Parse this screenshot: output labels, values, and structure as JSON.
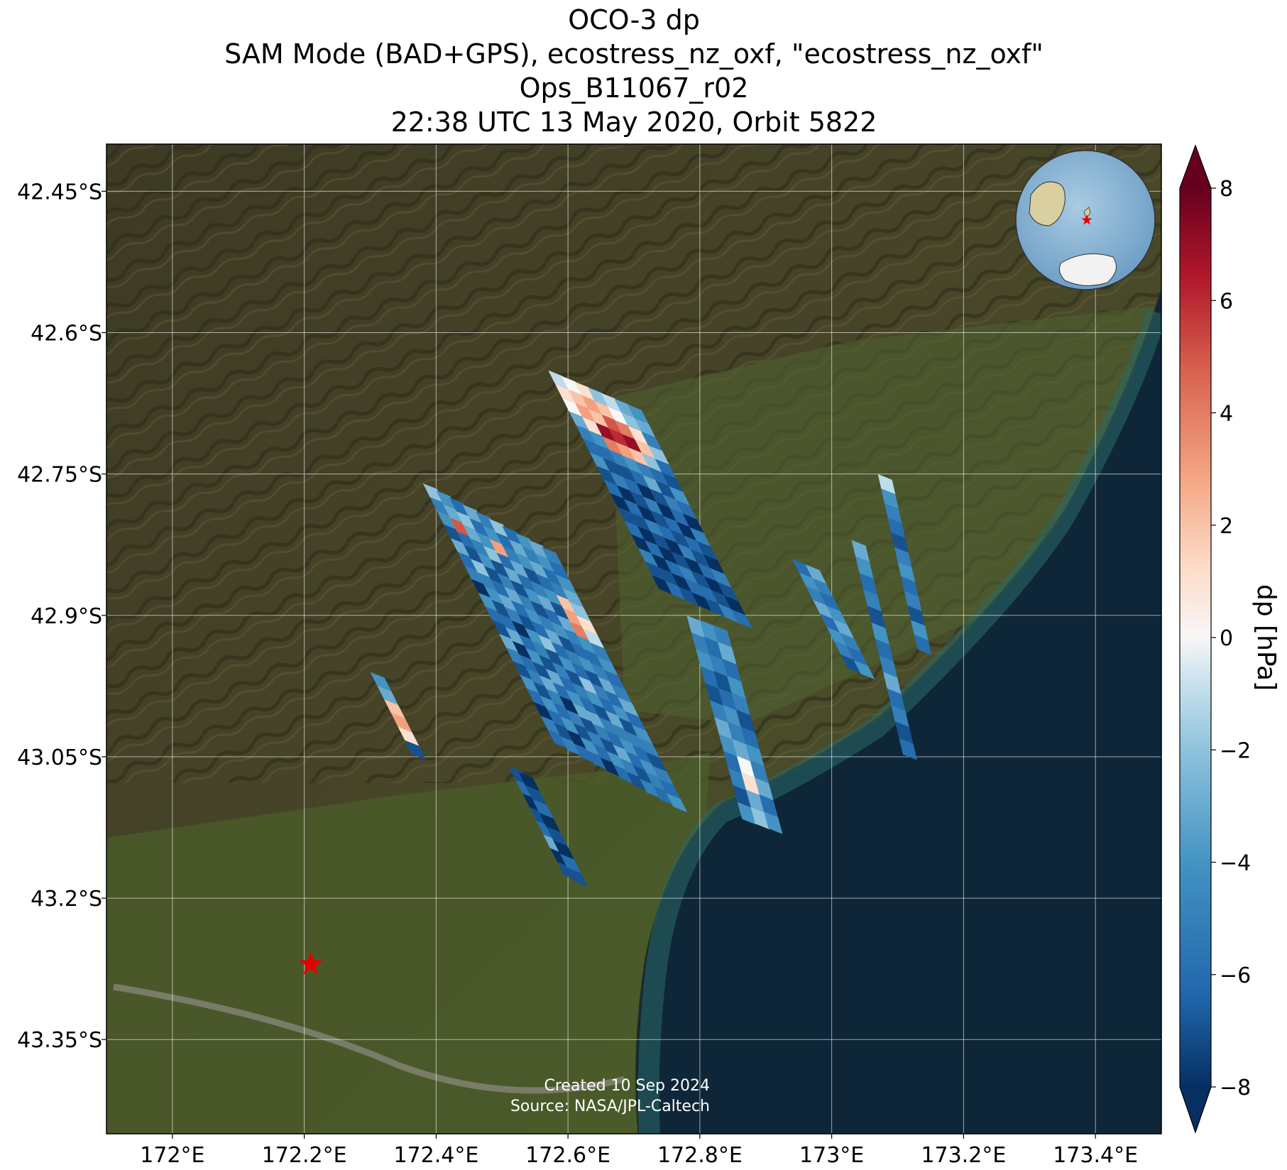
{
  "title": {
    "line1": "OCO-3 dp",
    "line2": "SAM Mode (BAD+GPS), ecostress_nz_oxf, \"ecostress_nz_oxf\"",
    "line3": "Ops_B11067_r02",
    "line4": "22:38 UTC 13 May 2020, Orbit 5822"
  },
  "axes": {
    "x_ticks": [
      "172°E",
      "172.2°E",
      "172.4°E",
      "172.6°E",
      "172.8°E",
      "173°E",
      "173.2°E",
      "173.4°E"
    ],
    "y_ticks": [
      "42.45°S",
      "42.6°S",
      "42.75°S",
      "42.9°S",
      "43.05°S",
      "43.2°S",
      "43.35°S"
    ],
    "lon_range": [
      171.9,
      173.5
    ],
    "lat_range": [
      -43.45,
      -42.4
    ]
  },
  "colorbar": {
    "label": "dp [hPa]",
    "ticks": [
      "8",
      "6",
      "4",
      "2",
      "0",
      "−2",
      "−4",
      "−6",
      "−8"
    ],
    "range": [
      -8,
      8
    ],
    "colormap": "RdBu_r",
    "extend": "both"
  },
  "credit": {
    "created": "Created 10 Sep 2024",
    "source": "Source: NASA/JPL-Caltech"
  },
  "target_marker": {
    "symbol": "star",
    "color": "#e60000",
    "lon": 172.21,
    "lat": -43.27
  },
  "inset": {
    "type": "globe",
    "marker_color": "#e60000"
  },
  "colors": {
    "land_dark": "#3b3a22",
    "land_green": "#4a5a2a",
    "ocean": "#0d2436",
    "ocean_coastal": "#1f5a5a",
    "grid": "#ffffff"
  },
  "chart_data": {
    "type": "heatmap",
    "title": "OCO-3 dp",
    "xlabel": "",
    "ylabel": "",
    "colorbar_label": "dp [hPa]",
    "vmin": -8,
    "vmax": 8,
    "swaths": [
      {
        "lon0": 172.57,
        "lat0": -42.64,
        "dlon_r": 0.02,
        "dlat_r": 0.006,
        "dlon_c": 0.0105,
        "dlat_c": 0.0145,
        "values": [
          [
            -1,
            1,
            0,
            -3,
            -5,
            -6,
            -4,
            -7,
            -6,
            -8,
            -7,
            -6,
            -8,
            -5,
            -7,
            -8
          ],
          [
            0,
            2,
            3,
            1,
            -4,
            -6,
            -7,
            -5,
            -8,
            -6,
            -7,
            -8,
            -6,
            -8,
            -7,
            -6
          ],
          [
            1,
            3,
            2,
            7,
            4,
            -5,
            -7,
            -6,
            -7,
            -8,
            -5,
            -7,
            -8,
            -6,
            -8,
            -7
          ],
          [
            -2,
            2,
            5,
            6,
            3,
            -4,
            -6,
            -8,
            -5,
            -7,
            -6,
            -8,
            -7,
            -5,
            -6,
            -8
          ],
          [
            -1,
            0,
            4,
            7,
            2,
            -5,
            -3,
            -7,
            -8,
            -6,
            -7,
            -5,
            -8,
            -7,
            -6,
            -7
          ],
          [
            -3,
            -2,
            1,
            2,
            -2,
            -6,
            -7,
            -5,
            -6,
            -8,
            -6,
            -7,
            -6,
            -8,
            -7,
            -5
          ],
          [
            -4,
            -3,
            -5,
            -2,
            -6,
            -7,
            -4,
            -6,
            -8,
            -5,
            -7,
            -8,
            -5,
            -7,
            -8,
            -6
          ]
        ]
      },
      {
        "lon0": 172.38,
        "lat0": -42.76,
        "dlon_r": 0.02,
        "dlat_r": 0.0075,
        "dlon_c": 0.0105,
        "dlat_c": 0.0145,
        "values": [
          [
            -2,
            -5,
            -4,
            -7,
            -3,
            -6,
            -5,
            -8,
            -4,
            -6,
            -7,
            -3,
            -5,
            -7,
            -4,
            -6,
            -8,
            -5,
            -6
          ],
          [
            -4,
            -3,
            5,
            -6,
            -7,
            -2,
            -5,
            -4,
            -7,
            -6,
            -3,
            -8,
            -6,
            -5,
            -7,
            -4,
            -6,
            -7,
            -5
          ],
          [
            -6,
            -2,
            -3,
            -5,
            -4,
            -7,
            -6,
            -3,
            -5,
            -8,
            -6,
            -4,
            -7,
            -3,
            -5,
            -6,
            -4,
            -8,
            -6
          ],
          [
            -3,
            -6,
            -4,
            -2,
            -7,
            -5,
            -3,
            -6,
            -7,
            -4,
            -5,
            -7,
            -3,
            -6,
            -8,
            -5,
            -7,
            -4,
            -6
          ],
          [
            -5,
            -4,
            3,
            -6,
            -3,
            -7,
            -5,
            -4,
            -6,
            -2,
            -7,
            -5,
            -6,
            -4,
            -3,
            -7,
            -5,
            -6,
            -8
          ],
          [
            -2,
            -6,
            -5,
            -3,
            -6,
            -4,
            -7,
            -5,
            -3,
            -6,
            -4,
            -7,
            -5,
            -6,
            -3,
            -5,
            -7,
            -4,
            -6
          ],
          [
            -6,
            -3,
            -4,
            -7,
            -5,
            -3,
            -6,
            -4,
            -7,
            -5,
            -6,
            -2,
            -4,
            -7,
            -5,
            -6,
            -3,
            -5,
            -7
          ],
          [
            -4,
            -5,
            -3,
            -6,
            -4,
            -7,
            -3,
            -5,
            -6,
            -4,
            -7,
            -5,
            -6,
            -3,
            -5,
            -4,
            -6,
            -7,
            -5
          ],
          [
            -3,
            -4,
            -6,
            -5,
            2,
            3,
            4,
            -4,
            -6,
            -5,
            -3,
            -6,
            -4,
            -7,
            -5,
            -6,
            -4,
            -5,
            -6
          ],
          [
            -5,
            -6,
            -4,
            -3,
            -2,
            1,
            -1,
            -5,
            -4,
            -6,
            -5,
            -3,
            -6,
            -4,
            -5,
            -7,
            -5,
            -6,
            -4
          ]
        ]
      },
      {
        "lon0": 172.3,
        "lat0": -42.96,
        "dlon_r": 0.0,
        "dlat_r": 0.01,
        "dlon_c": 0.0105,
        "dlat_c": 0.0145,
        "values": [
          [
            -4,
            -3,
            2,
            3,
            1,
            -7
          ]
        ]
      },
      {
        "lon0": 172.78,
        "lat0": -42.9,
        "dlon_r": 0.02,
        "dlat_r": 0.005,
        "dlon_c": 0.007,
        "dlat_c": 0.018,
        "values": [
          [
            -3,
            -5,
            -4,
            -6,
            -7,
            -5,
            -3,
            -4,
            -6,
            -5,
            -7,
            -4
          ],
          [
            -4,
            -6,
            -5,
            -7,
            -6,
            -4,
            -5,
            -3,
            0,
            1,
            -3,
            -2
          ],
          [
            -5,
            -3,
            -6,
            -4,
            -5,
            -7,
            -6,
            -4,
            -5,
            -3,
            -6,
            -4
          ]
        ]
      },
      {
        "lon0": 172.51,
        "lat0": -43.06,
        "dlon_r": 0.015,
        "dlat_r": 0.006,
        "dlon_c": 0.0105,
        "dlat_c": 0.0145,
        "values": [
          [
            -7,
            -6,
            -8,
            -7,
            -6,
            -3,
            -8,
            -7
          ],
          [
            -8,
            -7,
            -6,
            -8,
            -7,
            -8,
            -6,
            -7
          ]
        ]
      },
      {
        "lon0": 172.94,
        "lat0": -42.84,
        "dlon_r": 0.02,
        "dlat_r": 0.006,
        "dlon_c": 0.0105,
        "dlat_c": 0.0145,
        "values": [
          [
            -6,
            -4,
            -5,
            -3,
            -6,
            -4,
            -5,
            -7
          ],
          [
            -3,
            -5,
            -6,
            -4,
            -3,
            -5,
            -6,
            -4
          ]
        ]
      },
      {
        "lon0": 173.03,
        "lat0": -42.82,
        "dlon_r": 0.0,
        "dlat_r": 0.01,
        "dlon_c": 0.006,
        "dlat_c": 0.0175,
        "values": [
          [
            -3,
            -4,
            -6,
            -5,
            -7,
            -4,
            -6,
            -5,
            -3,
            -6,
            -5,
            -7,
            -6
          ]
        ]
      },
      {
        "lon0": 173.07,
        "lat0": -42.75,
        "dlon_r": 0.0,
        "dlat_r": 0.01,
        "dlon_c": 0.005,
        "dlat_c": 0.0155,
        "values": [
          [
            -1,
            -4,
            -5,
            -6,
            -7,
            -5,
            -4,
            -6,
            -5,
            -7,
            -4,
            -6
          ]
        ]
      }
    ]
  }
}
